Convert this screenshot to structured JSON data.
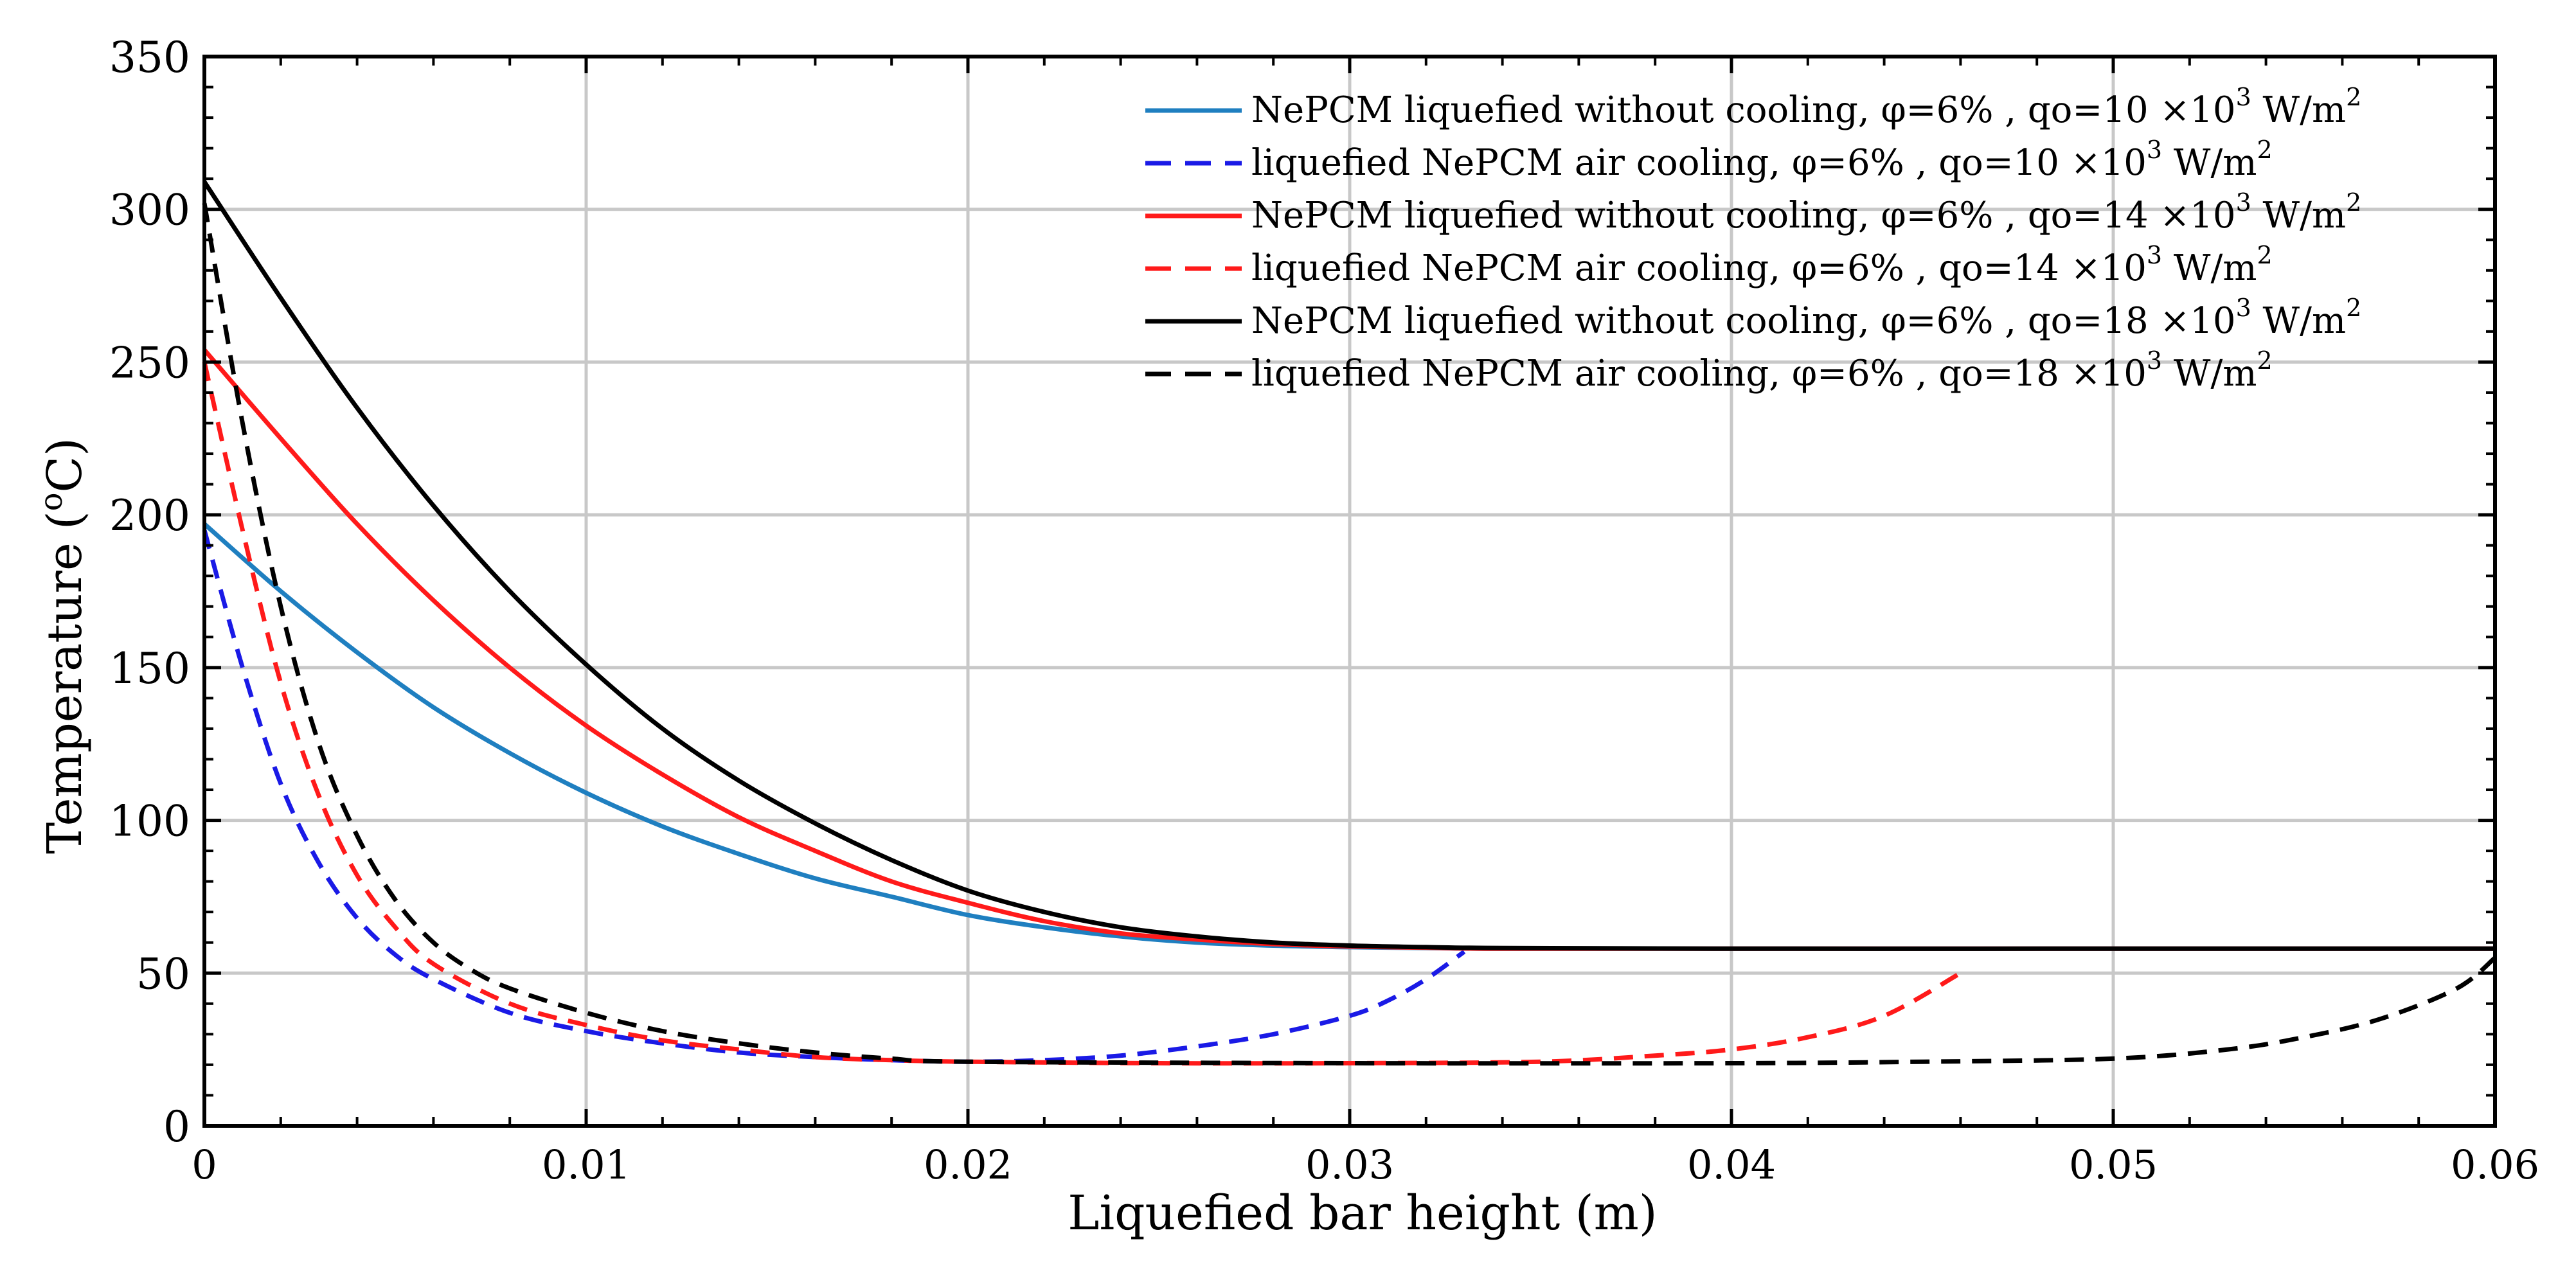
{
  "chart_data": {
    "type": "line",
    "title": "",
    "xlabel": "Liquefied bar height (m)",
    "ylabel_main": "Temperature",
    "ylabel_unit_open": "(",
    "ylabel_unit_sup": "o",
    "ylabel_unit_close": "C)",
    "xlim": [
      0,
      0.06
    ],
    "ylim": [
      0,
      350
    ],
    "xticks": [
      0,
      0.01,
      0.02,
      0.03,
      0.04,
      0.05,
      0.06
    ],
    "xtick_labels": [
      "0",
      "0.01",
      "0.02",
      "0.03",
      "0.04",
      "0.05",
      "0.06"
    ],
    "yticks": [
      0,
      50,
      100,
      150,
      200,
      250,
      300,
      350
    ],
    "ytick_labels": [
      "0",
      "50",
      "100",
      "150",
      "200",
      "250",
      "300",
      "350"
    ],
    "grid": true,
    "legend_position": "top-right",
    "series": [
      {
        "name": "NePCM liquefied without cooling, φ=6% , qo=10 ×10³ W/m²",
        "legend_main": "NePCM liquefied without cooling, φ=6% , qo=10 ×10",
        "legend_sup1": "3",
        "legend_unit": " W/m",
        "legend_sup2": "2",
        "color": "#1f7fc0",
        "style": "solid",
        "x": [
          0,
          0.002,
          0.004,
          0.006,
          0.008,
          0.01,
          0.012,
          0.014,
          0.016,
          0.018,
          0.02,
          0.022,
          0.024,
          0.026,
          0.028,
          0.03,
          0.032,
          0.034,
          0.04,
          0.05,
          0.06
        ],
        "y": [
          197,
          175,
          155,
          137,
          122,
          109,
          98,
          89,
          81,
          75,
          69,
          65,
          62,
          60,
          59,
          58.5,
          58.2,
          58,
          58,
          58,
          58
        ]
      },
      {
        "name": "liquefied NePCM air cooling, φ=6% , qo=10 ×10³ W/m²",
        "legend_main": "liquefied NePCM air cooling, φ=6% , qo=10 ×10",
        "legend_sup1": "3",
        "legend_unit": " W/m",
        "legend_sup2": "2",
        "color": "#1a1ae6",
        "style": "dashed",
        "x": [
          0,
          0.001,
          0.002,
          0.003,
          0.004,
          0.005,
          0.006,
          0.008,
          0.01,
          0.012,
          0.014,
          0.016,
          0.018,
          0.02,
          0.022,
          0.024,
          0.026,
          0.028,
          0.03,
          0.031,
          0.032,
          0.033
        ],
        "y": [
          195,
          150,
          112,
          86,
          68,
          56,
          48,
          37,
          31,
          27,
          24,
          22.5,
          21.5,
          21,
          21.5,
          23,
          26,
          30,
          36,
          41,
          48,
          57
        ]
      },
      {
        "name": "NePCM liquefied without cooling, φ=6% , qo=14 ×10³ W/m²",
        "legend_main": "NePCM liquefied without cooling, φ=6% , qo=14 ×10",
        "legend_sup1": "3",
        "legend_unit": " W/m",
        "legend_sup2": "2",
        "color": "#ff1a1a",
        "style": "solid",
        "x": [
          0,
          0.002,
          0.004,
          0.006,
          0.008,
          0.01,
          0.012,
          0.014,
          0.016,
          0.018,
          0.02,
          0.022,
          0.024,
          0.026,
          0.028,
          0.03,
          0.032,
          0.034,
          0.04,
          0.05,
          0.06
        ],
        "y": [
          254,
          225,
          197,
          172,
          150,
          131,
          115,
          101,
          90,
          80,
          73,
          67,
          63,
          61,
          59.5,
          58.7,
          58.3,
          58,
          58,
          58,
          58
        ]
      },
      {
        "name": "liquefied NePCM air cooling, φ=6% , qo=14 ×10³ W/m²",
        "legend_main": "liquefied NePCM air cooling, φ=6% , qo=14 ×10",
        "legend_sup1": "3",
        "legend_unit": " W/m",
        "legend_sup2": "2",
        "color": "#ff1a1a",
        "style": "dashed",
        "x": [
          0,
          0.001,
          0.002,
          0.003,
          0.004,
          0.005,
          0.006,
          0.008,
          0.01,
          0.012,
          0.014,
          0.016,
          0.018,
          0.02,
          0.025,
          0.03,
          0.035,
          0.038,
          0.04,
          0.042,
          0.044,
          0.046
        ],
        "y": [
          250,
          195,
          145,
          108,
          82,
          65,
          53,
          40,
          33,
          28,
          25,
          22.5,
          21.5,
          21,
          20.5,
          20.5,
          21,
          23,
          25,
          29,
          36,
          50
        ]
      },
      {
        "name": "NePCM liquefied without cooling, φ=6% , qo=18 ×10³ W/m²",
        "legend_main": "NePCM liquefied without cooling, φ=6% , qo=18 ×10",
        "legend_sup1": "3",
        "legend_unit": " W/m",
        "legend_sup2": "2",
        "color": "#000000",
        "style": "solid",
        "x": [
          0,
          0.002,
          0.004,
          0.006,
          0.008,
          0.01,
          0.012,
          0.014,
          0.016,
          0.018,
          0.02,
          0.022,
          0.024,
          0.026,
          0.028,
          0.03,
          0.032,
          0.034,
          0.04,
          0.05,
          0.06
        ],
        "y": [
          309,
          271,
          235,
          203,
          175,
          151,
          130,
          113,
          99,
          87,
          77,
          70,
          65,
          62,
          60,
          59,
          58.5,
          58.2,
          58,
          58,
          58
        ]
      },
      {
        "name": "liquefied NePCM air cooling, φ=6% , qo=18 ×10³ W/m²",
        "legend_main": "liquefied NePCM air cooling, φ=6% , qo=18 ×10",
        "legend_sup1": "3",
        "legend_unit": " W/m",
        "legend_sup2": "2",
        "color": "#000000",
        "style": "dashed",
        "x": [
          0,
          0.001,
          0.002,
          0.003,
          0.004,
          0.005,
          0.006,
          0.007,
          0.008,
          0.01,
          0.012,
          0.014,
          0.016,
          0.018,
          0.02,
          0.03,
          0.04,
          0.045,
          0.05,
          0.053,
          0.055,
          0.057,
          0.059,
          0.06
        ],
        "y": [
          302,
          230,
          170,
          125,
          95,
          74,
          60,
          51,
          45,
          37,
          31,
          27,
          24,
          22,
          21,
          20.5,
          20.5,
          21,
          22,
          25,
          29,
          35,
          45,
          55
        ]
      }
    ]
  }
}
